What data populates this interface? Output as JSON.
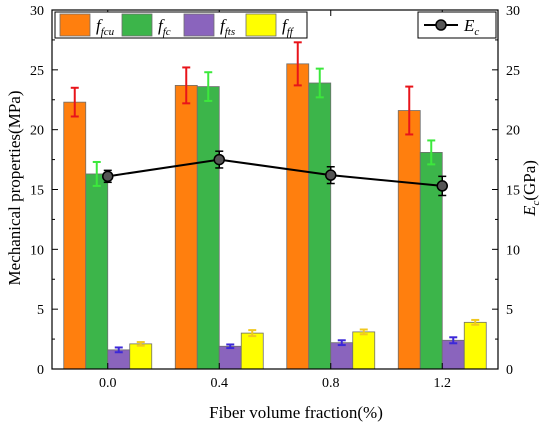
{
  "chart_data": {
    "type": "bar",
    "categories": [
      "0.0",
      "0.4",
      "0.8",
      "1.2"
    ],
    "series": [
      {
        "name": "f_fcu",
        "name_main": "f",
        "name_sub": "fcu",
        "color": "#ff7f0e",
        "err_color": "#e8141a",
        "values": [
          22.3,
          23.7,
          25.5,
          21.6
        ],
        "errors": [
          1.2,
          1.5,
          1.8,
          2.0
        ]
      },
      {
        "name": "f_fc",
        "name_main": "f",
        "name_sub": "fc",
        "color": "#3cb54a",
        "err_color": "#3ce83c",
        "values": [
          16.3,
          23.6,
          23.9,
          18.1
        ],
        "errors": [
          1.0,
          1.2,
          1.2,
          1.0
        ]
      },
      {
        "name": "f_fts",
        "name_main": "f",
        "name_sub": "fts",
        "color": "#8a64bd",
        "err_color": "#3c28d8",
        "values": [
          1.6,
          1.9,
          2.2,
          2.4
        ],
        "errors": [
          0.2,
          0.15,
          0.2,
          0.25
        ]
      },
      {
        "name": "f_ff",
        "name_main": "f",
        "name_sub": "ff",
        "color": "#ffff00",
        "err_color": "#f0c820",
        "values": [
          2.1,
          3.0,
          3.1,
          3.9
        ],
        "errors": [
          0.15,
          0.25,
          0.2,
          0.2
        ]
      }
    ],
    "line_series": {
      "name": "E_c",
      "name_main": "E",
      "name_sub": "c",
      "color": "#000000",
      "values": [
        16.1,
        17.5,
        16.2,
        15.3
      ],
      "errors": [
        0.5,
        0.7,
        0.7,
        0.8
      ]
    },
    "xlabel": "Fiber volume fraction(%)",
    "ylabel": "Mechanical properties(MPa)",
    "y2label_main": "E",
    "y2label_sub": "c",
    "y2label_unit": "(GPa)",
    "ylim": [
      0,
      30
    ],
    "y2lim": [
      0,
      30
    ],
    "yticks": [
      "0",
      "5",
      "10",
      "15",
      "20",
      "25",
      "30"
    ],
    "grid": false,
    "legend_placement": "top"
  }
}
